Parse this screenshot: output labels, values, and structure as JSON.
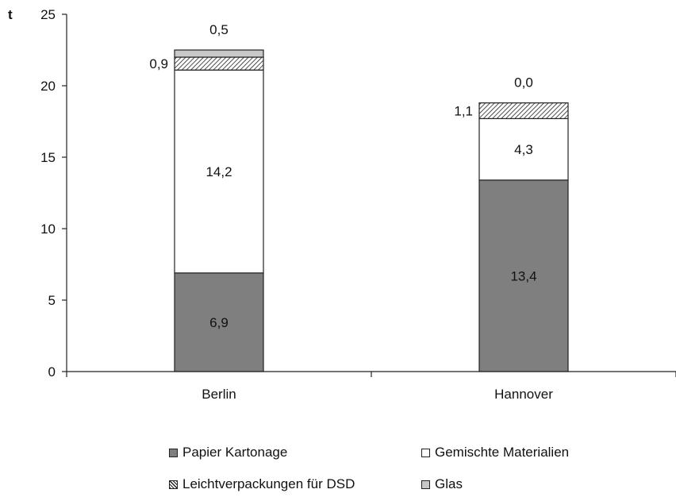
{
  "chart_data": {
    "type": "bar",
    "stacked": true,
    "unit_label": "t",
    "categories": [
      "Berlin",
      "Hannover"
    ],
    "ylim": [
      0,
      25
    ],
    "yticks": [
      0,
      5,
      10,
      15,
      20,
      25
    ],
    "grid": false,
    "legend_position": "bottom",
    "series": [
      {
        "name": "Papier Kartonage",
        "values": [
          6.9,
          13.4
        ],
        "labels": [
          "6,9",
          "13,4"
        ],
        "color": "#7f7f7f",
        "pattern": "solid"
      },
      {
        "name": "Gemischte Materialien",
        "values": [
          14.2,
          4.3
        ],
        "labels": [
          "14,2",
          "4,3"
        ],
        "color": "#ffffff",
        "pattern": "solid"
      },
      {
        "name": "Leichtverpackungen für DSD",
        "values": [
          0.9,
          1.1
        ],
        "labels": [
          "0,9",
          "1,1"
        ],
        "color": "#ffffff",
        "pattern": "diagonal-hatch"
      },
      {
        "name": "Glas",
        "values": [
          0.5,
          0.0
        ],
        "labels": [
          "0,5",
          "0,0"
        ],
        "color": "#c8c8c8",
        "pattern": "solid"
      }
    ]
  }
}
